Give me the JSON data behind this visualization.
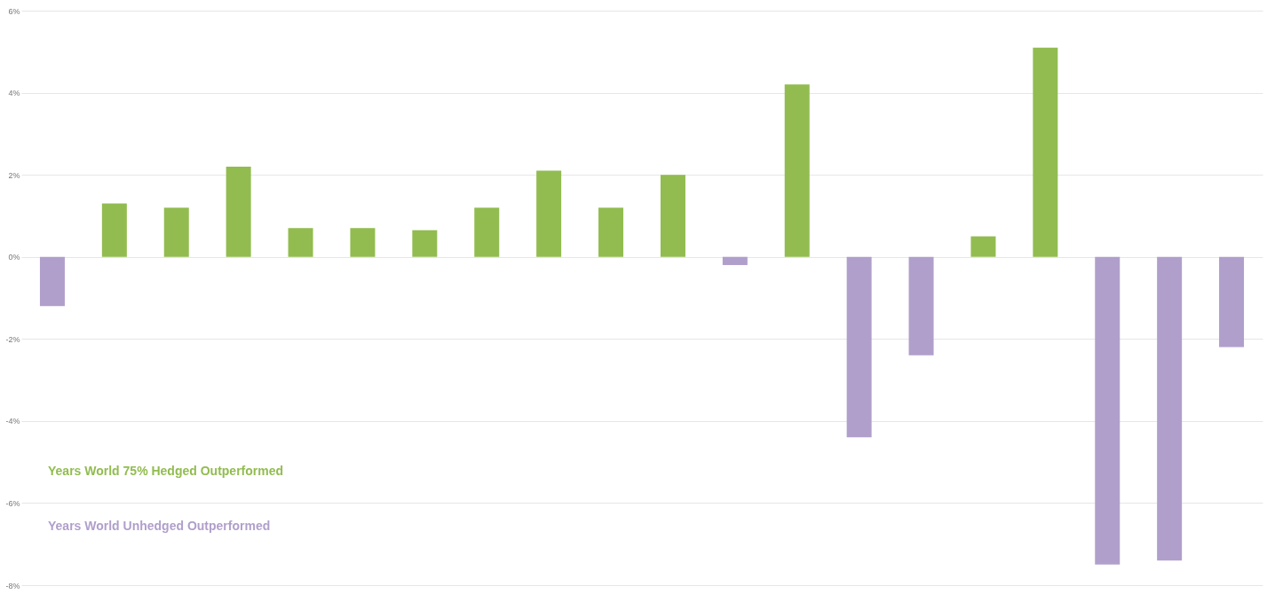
{
  "chart_data": {
    "type": "bar",
    "categories": [
      null,
      null,
      null,
      null,
      null,
      null,
      null,
      null,
      null,
      null,
      null,
      null,
      null,
      null,
      null,
      null,
      null,
      null,
      null,
      null
    ],
    "series": [
      {
        "name": "Years World 75% Hedged Outperformed",
        "color": "#92bc50",
        "values": [
          null,
          1.3,
          1.2,
          2.2,
          0.7,
          0.7,
          0.65,
          1.2,
          2.1,
          1.2,
          2.0,
          null,
          4.2,
          null,
          null,
          0.5,
          5.1,
          null,
          null,
          null
        ]
      },
      {
        "name": "Years World Unhedged Outperformed",
        "color": "#b09fcb",
        "values": [
          -1.2,
          null,
          null,
          null,
          null,
          null,
          null,
          null,
          null,
          null,
          null,
          -0.2,
          null,
          -4.4,
          -2.4,
          null,
          null,
          -7.5,
          -7.4,
          -2.2
        ]
      }
    ],
    "ylim": [
      -8,
      6
    ],
    "yticks": [
      {
        "value": -8,
        "label": "-8%"
      },
      {
        "value": -6,
        "label": "-6%"
      },
      {
        "value": -4,
        "label": "-4%"
      },
      {
        "value": -2,
        "label": "-2%"
      },
      {
        "value": 0,
        "label": "0%"
      },
      {
        "value": 2,
        "label": "2%"
      },
      {
        "value": 4,
        "label": "4%"
      },
      {
        "value": 6,
        "label": "6%"
      }
    ],
    "grid": "y",
    "legend": "bottom left"
  }
}
